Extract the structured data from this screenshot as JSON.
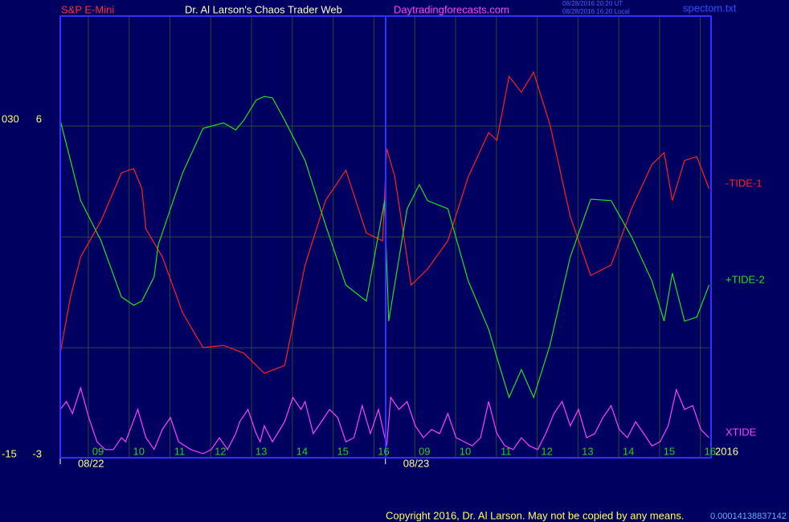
{
  "header": {
    "symbol": "S&P E-Mini",
    "site": "Dr. Al Larson's Chaos Trader Web",
    "url": "Daytradingforecasts.com",
    "time_ut": "08/28/2016 20:20 UT",
    "time_local": "08/28/2016 16:20 Local",
    "file": "spectom.txt"
  },
  "footer": {
    "copyright": "Copyright 2016, Dr. Al Larson. May not be copied by any means.",
    "code": "0.00014138837142"
  },
  "chart_data": {
    "type": "line",
    "year_label": "2016",
    "xlim": [
      0,
      15.95
    ],
    "xticks": [
      {
        "value": 0.925,
        "label": "09"
      },
      {
        "value": 1.925,
        "label": "10"
      },
      {
        "value": 2.925,
        "label": "11"
      },
      {
        "value": 3.925,
        "label": "12"
      },
      {
        "value": 4.925,
        "label": "13"
      },
      {
        "value": 5.925,
        "label": "14"
      },
      {
        "value": 6.925,
        "label": "15"
      },
      {
        "value": 7.925,
        "label": "16"
      },
      {
        "value": 8.925,
        "label": "09"
      },
      {
        "value": 9.925,
        "label": "10"
      },
      {
        "value": 10.925,
        "label": "11"
      },
      {
        "value": 11.925,
        "label": "12"
      },
      {
        "value": 12.925,
        "label": "13"
      },
      {
        "value": 13.925,
        "label": "14"
      },
      {
        "value": 14.925,
        "label": "15"
      },
      {
        "value": 15.925,
        "label": "16"
      }
    ],
    "date_ticks": [
      {
        "value": 0,
        "label": "08/22"
      },
      {
        "value": 7.97,
        "label": "08/23"
      }
    ],
    "ylim": [
      -3,
      8.87
    ],
    "yticks": [
      -3,
      6
    ],
    "y2lim": [
      -15,
      44.35
    ],
    "y2ticks": [
      -15,
      {
        "value": 30,
        "label": "030"
      }
    ],
    "grid": true,
    "series": [
      {
        "name": "-TIDE-1",
        "color": "#ff2020",
        "x": [
          0,
          0.25,
          0.5,
          1,
          1.5,
          1.8,
          2,
          2.1,
          2.5,
          3,
          3.5,
          4,
          4.5,
          5,
          5.5,
          6,
          6.5,
          7,
          7.5,
          7.9,
          8.0,
          8.2,
          8.6,
          9,
          9.5,
          10,
          10.5,
          10.7,
          11,
          11.3,
          11.6,
          12,
          12.5,
          13,
          13.5,
          14,
          14.5,
          14.8,
          15,
          15.3,
          15.6,
          15.9
        ],
        "values": [
          -0.19,
          1.32,
          2.4,
          3.37,
          4.66,
          4.77,
          4.23,
          3.15,
          2.4,
          0.89,
          -0.04,
          0.02,
          -0.19,
          -0.73,
          -0.52,
          2.18,
          3.91,
          4.73,
          3.04,
          2.83,
          5.31,
          4.55,
          1.64,
          2.07,
          2.83,
          4.55,
          5.74,
          5.53,
          7.25,
          6.82,
          7.36,
          5.96,
          3.48,
          1.9,
          2.18,
          3.69,
          4.88,
          5.2,
          3.91,
          4.99,
          5.09,
          4.23
        ]
      },
      {
        "name": "+TIDE-2",
        "color": "#20e020",
        "x": [
          0,
          0.5,
          1,
          1.5,
          1.8,
          2,
          2.3,
          2.4,
          3,
          3.5,
          4,
          4.3,
          4.5,
          4.8,
          5,
          5.2,
          5.5,
          6,
          6.5,
          7,
          7.5,
          7.95,
          8.05,
          8.5,
          8.8,
          9,
          9.5,
          10,
          10.5,
          10.7,
          11,
          11.3,
          11.6,
          12,
          12.5,
          13,
          13.5,
          14,
          14.5,
          14.8,
          15,
          15.3,
          15.6,
          15.9
        ],
        "values": [
          6.07,
          3.91,
          2.83,
          1.32,
          1.1,
          1.21,
          1.86,
          2.72,
          4.66,
          5.85,
          6.0,
          5.81,
          6.07,
          6.61,
          6.71,
          6.67,
          6.07,
          4.99,
          3.26,
          1.64,
          1.21,
          3.91,
          0.67,
          3.69,
          4.34,
          3.91,
          3.69,
          1.75,
          0.45,
          -0.3,
          -1.38,
          -0.63,
          -1.38,
          0.02,
          2.4,
          3.95,
          3.91,
          2.94,
          1.75,
          0.67,
          1.96,
          0.67,
          0.78,
          1.64
        ]
      },
      {
        "name": "XTIDE",
        "color": "#ff40ff",
        "x": [
          0,
          0.15,
          0.3,
          0.5,
          0.7,
          0.9,
          1.1,
          1.3,
          1.5,
          1.6,
          1.9,
          2.1,
          2.3,
          2.5,
          2.7,
          2.9,
          3.2,
          3.5,
          3.7,
          3.9,
          4.1,
          4.3,
          4.4,
          4.6,
          4.8,
          4.9,
          5.0,
          5.2,
          5.5,
          5.7,
          5.9,
          6.0,
          6.2,
          6.4,
          6.6,
          6.8,
          7.0,
          7.2,
          7.4,
          7.6,
          7.8,
          8.0,
          8.1,
          8.3,
          8.5,
          8.7,
          8.9,
          9.1,
          9.3,
          9.5,
          9.7,
          9.9,
          10.1,
          10.3,
          10.5,
          10.7,
          10.9,
          11.1,
          11.3,
          11.5,
          11.7,
          11.9,
          12.1,
          12.3,
          12.5,
          12.7,
          12.9,
          13.1,
          13.3,
          13.5,
          13.7,
          13.9,
          14.1,
          14.3,
          14.5,
          14.7,
          14.9,
          15.1,
          15.3,
          15.5,
          15.7,
          15.9
        ],
        "values": [
          -1.7,
          -1.49,
          -1.81,
          -1.12,
          -1.92,
          -2.57,
          -2.78,
          -2.78,
          -2.46,
          -2.57,
          -1.7,
          -2.46,
          -2.78,
          -2.24,
          -1.92,
          -2.57,
          -2.78,
          -2.89,
          -2.78,
          -2.46,
          -2.78,
          -2.35,
          -2.03,
          -1.7,
          -2.35,
          -2.57,
          -2.14,
          -2.57,
          -2.03,
          -1.38,
          -1.7,
          -1.49,
          -2.35,
          -2.03,
          -1.7,
          -1.92,
          -2.57,
          -2.46,
          -1.6,
          -2.35,
          -1.7,
          -2.68,
          -1.38,
          -1.7,
          -1.49,
          -2.14,
          -2.46,
          -2.24,
          -2.35,
          -1.81,
          -2.46,
          -2.57,
          -2.68,
          -2.46,
          -1.49,
          -2.35,
          -2.68,
          -2.78,
          -2.46,
          -2.68,
          -2.78,
          -2.35,
          -1.81,
          -1.49,
          -2.14,
          -1.7,
          -2.46,
          -2.35,
          -1.92,
          -1.6,
          -2.24,
          -2.46,
          -2.03,
          -2.35,
          -2.68,
          -2.57,
          -2.14,
          -1.17,
          -1.7,
          -1.6,
          -2.24,
          -2.46
        ]
      }
    ]
  }
}
